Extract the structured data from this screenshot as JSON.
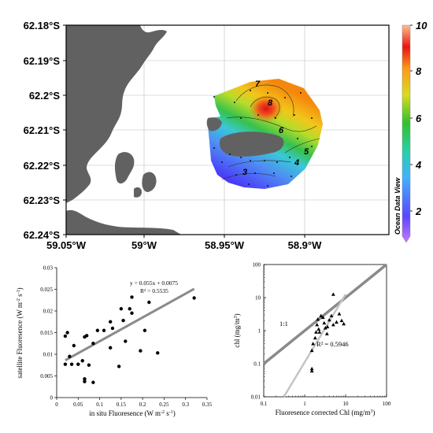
{
  "map": {
    "lat_labels": [
      "62.18°S",
      "62.19°S",
      "62.2°S",
      "62.21°S",
      "62.22°S",
      "62.23°S",
      "62.24°S"
    ],
    "lon_labels": [
      "59.05°W",
      "59°W",
      "58.95°W",
      "58.9°W"
    ],
    "colorbar_labels": [
      "10",
      "8",
      "6",
      "4",
      "2"
    ],
    "contour_labels": [
      "7",
      "8",
      "6",
      "5",
      "4",
      "3"
    ],
    "watermark": "Ocean Data View",
    "colors": {
      "land": "#616161",
      "ocean": "#ffffff",
      "grid": "#bdbdbd"
    }
  },
  "chart_data": [
    {
      "type": "scatter",
      "xlabel": "in situ Fluoresence (W m",
      "xlabel_sup": "-2",
      "xlabel_end": " s",
      "xlabel_sup2": "-1",
      "xlabel_close": ")",
      "ylabel": "satellite Fluoresence (W m",
      "ylabel_sup": "-2",
      "ylabel_end": " s",
      "ylabel_sup2": "-1",
      "ylabel_close": ")",
      "xlim": [
        0,
        0.35
      ],
      "ylim": [
        0,
        0.03
      ],
      "x_ticks": [
        "0",
        "0.05",
        "0.1",
        "0.15",
        "0.2",
        "0.25",
        "0.3",
        "0.35"
      ],
      "y_ticks": [
        "0",
        "0.005",
        "0.01",
        "0.015",
        "0.02",
        "0.025",
        "0.03"
      ],
      "fit_equation": "y = 0.055x + 0.0075",
      "r_squared": "R² = 0.5535",
      "fit": {
        "slope": 0.055,
        "intercept": 0.0075
      },
      "points": [
        [
          0.02,
          0.0077
        ],
        [
          0.02,
          0.0142
        ],
        [
          0.025,
          0.015
        ],
        [
          0.03,
          0.0095
        ],
        [
          0.035,
          0.0077
        ],
        [
          0.04,
          0.012
        ],
        [
          0.05,
          0.0077
        ],
        [
          0.06,
          0.0085
        ],
        [
          0.065,
          0.014
        ],
        [
          0.065,
          0.0043
        ],
        [
          0.065,
          0.0037
        ],
        [
          0.07,
          0.0143
        ],
        [
          0.075,
          0.0075
        ],
        [
          0.085,
          0.0035
        ],
        [
          0.085,
          0.0125
        ],
        [
          0.095,
          0.0155
        ],
        [
          0.11,
          0.0155
        ],
        [
          0.125,
          0.0115
        ],
        [
          0.125,
          0.0175
        ],
        [
          0.13,
          0.016
        ],
        [
          0.145,
          0.0072
        ],
        [
          0.15,
          0.0205
        ],
        [
          0.155,
          0.0178
        ],
        [
          0.16,
          0.013
        ],
        [
          0.17,
          0.0205
        ],
        [
          0.175,
          0.0195
        ],
        [
          0.175,
          0.0232
        ],
        [
          0.195,
          0.0108
        ],
        [
          0.205,
          0.0155
        ],
        [
          0.215,
          0.022
        ],
        [
          0.235,
          0.0103
        ],
        [
          0.32,
          0.023
        ]
      ]
    },
    {
      "type": "scatter",
      "xscale": "log",
      "yscale": "log",
      "xlabel": "Fluoresence corrected Chl (mg/m",
      "xlabel_sup": "3",
      "xlabel_close": ")",
      "ylabel": "chl (mg/m",
      "ylabel_sup": "3",
      "ylabel_close": ")",
      "xlim": [
        0.1,
        100
      ],
      "ylim": [
        0.01,
        100
      ],
      "x_ticks": [
        "0.1",
        "1",
        "10",
        "100"
      ],
      "y_ticks": [
        "0.01",
        "0.1",
        "1",
        "10",
        "100"
      ],
      "one_to_one_label": "1:1",
      "r_squared": "R² = 0.5946",
      "one_to_one": {
        "slope": 1,
        "intercept": 0
      },
      "fit_line": [
        [
          0.31,
          0.01
        ],
        [
          10,
          12.6
        ]
      ],
      "points": [
        [
          1.5,
          0.07
        ],
        [
          1.5,
          0.06
        ],
        [
          1.5,
          0.25
        ],
        [
          1.6,
          0.4
        ],
        [
          1.8,
          0.6
        ],
        [
          1.9,
          0.9
        ],
        [
          2,
          1.5
        ],
        [
          2.1,
          2.2
        ],
        [
          2.2,
          1.1
        ],
        [
          2.3,
          0.9
        ],
        [
          2.5,
          2.8
        ],
        [
          2.8,
          2.5
        ],
        [
          3,
          1.7
        ],
        [
          3.2,
          1.2
        ],
        [
          3.5,
          0.8
        ],
        [
          3.6,
          1.3
        ],
        [
          4,
          2.1
        ],
        [
          4.5,
          2.8
        ],
        [
          5,
          1.5
        ],
        [
          5,
          12.5
        ],
        [
          6,
          1.8
        ],
        [
          7,
          3.2
        ],
        [
          8,
          2.0
        ],
        [
          9,
          1.6
        ]
      ]
    }
  ]
}
